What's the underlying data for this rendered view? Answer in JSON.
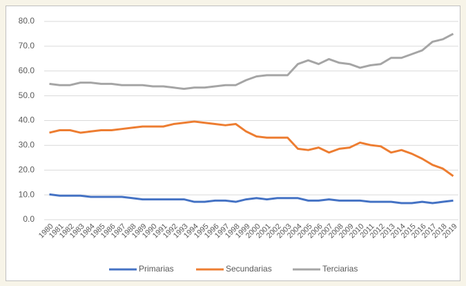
{
  "chart_data": {
    "type": "line",
    "categories": [
      "1980",
      "1981",
      "1982",
      "1983",
      "1984",
      "1985",
      "1986",
      "1987",
      "1988",
      "1989",
      "1990",
      "1991",
      "1992",
      "1993",
      "1994",
      "1995",
      "1996",
      "1997",
      "1998",
      "1999",
      "2000",
      "2001",
      "2002",
      "2003",
      "2004",
      "2005",
      "2006",
      "2007",
      "2008",
      "2009",
      "2010",
      "2011",
      "2012",
      "2013",
      "2014",
      "2015",
      "2016",
      "2017",
      "2018",
      "2019"
    ],
    "series": [
      {
        "name": "Primarias",
        "color": "#4472c4",
        "values": [
          10.2,
          9.7,
          9.7,
          9.7,
          9.2,
          9.2,
          9.2,
          9.2,
          8.7,
          8.2,
          8.2,
          8.2,
          8.2,
          8.2,
          7.2,
          7.2,
          7.7,
          7.7,
          7.2,
          8.2,
          8.7,
          8.2,
          8.7,
          8.7,
          8.7,
          7.7,
          7.7,
          8.2,
          7.7,
          7.7,
          7.7,
          7.2,
          7.2,
          7.2,
          6.7,
          6.7,
          7.2,
          6.7,
          7.2,
          7.7
        ]
      },
      {
        "name": "Secundarias",
        "color": "#ed7d31",
        "values": [
          35.1,
          36.1,
          36.1,
          35.1,
          35.6,
          36.1,
          36.1,
          36.6,
          37.1,
          37.6,
          37.6,
          37.6,
          38.6,
          39.1,
          39.6,
          39.1,
          38.6,
          38.1,
          38.6,
          35.6,
          33.6,
          33.1,
          33.1,
          33.1,
          28.6,
          28.1,
          29.1,
          27.1,
          28.6,
          29.1,
          31.1,
          30.1,
          29.6,
          27.1,
          28.1,
          26.6,
          24.6,
          22.1,
          20.6,
          17.6
        ]
      },
      {
        "name": "Terciarias",
        "color": "#a5a5a5",
        "values": [
          54.8,
          54.3,
          54.3,
          55.3,
          55.3,
          54.8,
          54.8,
          54.3,
          54.3,
          54.3,
          53.8,
          53.8,
          53.3,
          52.8,
          53.3,
          53.3,
          53.8,
          54.3,
          54.3,
          56.3,
          57.8,
          58.3,
          58.3,
          58.3,
          62.8,
          64.3,
          62.8,
          64.8,
          63.3,
          62.8,
          61.3,
          62.3,
          62.8,
          65.3,
          65.3,
          66.8,
          68.3,
          71.8,
          72.8,
          75.0
        ]
      }
    ],
    "ylim": [
      0,
      80
    ],
    "yticks": [
      {
        "value": 0,
        "label": "0.0"
      },
      {
        "value": 10,
        "label": "10.0"
      },
      {
        "value": 20,
        "label": "20.0"
      },
      {
        "value": 30,
        "label": "30.0"
      },
      {
        "value": 40,
        "label": "40.0"
      },
      {
        "value": 50,
        "label": "50.0"
      },
      {
        "value": 60,
        "label": "60.0"
      },
      {
        "value": 70,
        "label": "70.0"
      },
      {
        "value": 80,
        "label": "80.0"
      }
    ],
    "grid": true,
    "legend": "bottom"
  }
}
